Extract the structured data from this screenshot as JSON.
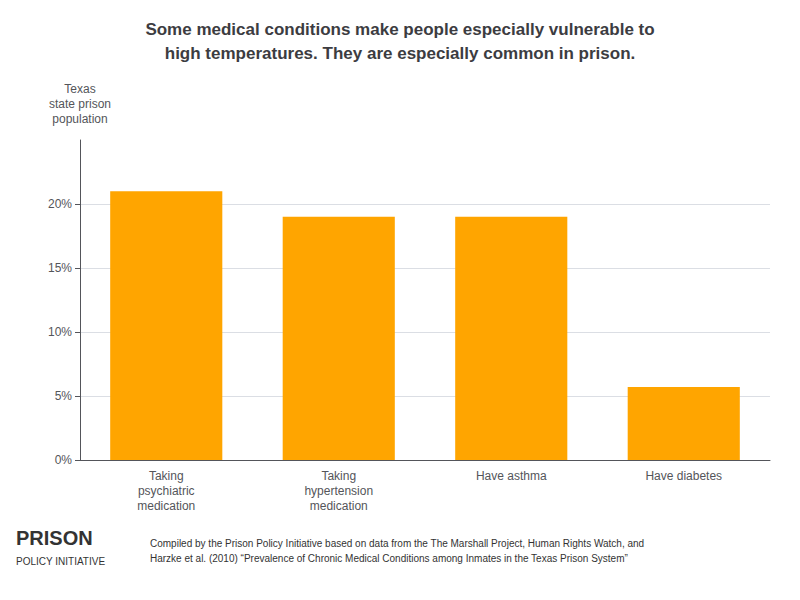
{
  "chart_data": {
    "type": "bar",
    "title": "Some medical conditions make people especially vulnerable to\nhigh temperatures. They are especially common in prison.",
    "categories": [
      "Taking\npsychiatric\nmedication",
      "Taking\nhypertension\nmedication",
      "Have asthma",
      "Have diabetes"
    ],
    "values": [
      21.0,
      19.0,
      19.0,
      5.7
    ],
    "color": "#FFA500",
    "ylabel": "Texas\nstate prison\npopulation",
    "ylim": [
      0,
      25
    ],
    "yticks": [
      {
        "value": 0,
        "label": "0%"
      },
      {
        "value": 5,
        "label": "5%"
      },
      {
        "value": 10,
        "label": "10%"
      },
      {
        "value": 15,
        "label": "15%"
      },
      {
        "value": 20,
        "label": "20%"
      }
    ],
    "grid": true,
    "annotations": [
      "PRISON",
      "POLICY INITIATIVE",
      "Compiled by the Prison Policy Initiative based on data from the The Marshall Project, Human Rights Watch, and\nHarzke et al. (2010) “Prevalence of Chronic Medical Conditions among Inmates in the Texas Prison System”"
    ]
  }
}
